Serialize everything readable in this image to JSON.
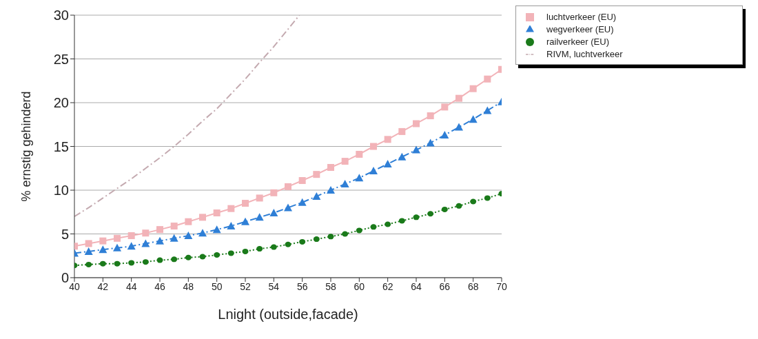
{
  "chart_data": {
    "type": "line",
    "xlabel": "Lnight (outside,facade)",
    "ylabel": "% ernstig gehinderd",
    "xlim": [
      40,
      70
    ],
    "xticks": [
      40,
      42,
      44,
      46,
      48,
      50,
      52,
      54,
      56,
      58,
      60,
      62,
      64,
      66,
      68,
      70
    ],
    "ylim": [
      0,
      30
    ],
    "yticks": [
      0,
      5,
      10,
      15,
      20,
      25,
      30
    ],
    "grid": "y",
    "legend": "top right",
    "x": [
      40,
      41,
      42,
      43,
      44,
      45,
      46,
      47,
      48,
      49,
      50,
      51,
      52,
      53,
      54,
      55,
      56,
      57,
      58,
      59,
      60,
      61,
      62,
      63,
      64,
      65,
      66,
      67,
      68,
      69,
      70
    ],
    "series": [
      {
        "name": "luchtverkeer (EU)",
        "color": "#f2b3b8",
        "marker": "square",
        "line_style": "solid",
        "values": [
          3.6,
          3.9,
          4.2,
          4.5,
          4.8,
          5.1,
          5.5,
          5.9,
          6.4,
          6.9,
          7.4,
          7.9,
          8.5,
          9.1,
          9.7,
          10.4,
          11.1,
          11.8,
          12.6,
          13.3,
          14.1,
          15.0,
          15.8,
          16.7,
          17.6,
          18.5,
          19.5,
          20.5,
          21.6,
          22.7,
          23.8
        ]
      },
      {
        "name": "wegverkeer (EU)",
        "color": "#2f7fd6",
        "marker": "triangle",
        "line_style": "dashed",
        "values": [
          2.8,
          3.0,
          3.2,
          3.4,
          3.6,
          3.9,
          4.2,
          4.5,
          4.8,
          5.1,
          5.5,
          5.9,
          6.4,
          6.9,
          7.4,
          8.0,
          8.6,
          9.3,
          10.0,
          10.7,
          11.4,
          12.2,
          13.0,
          13.8,
          14.6,
          15.4,
          16.3,
          17.2,
          18.1,
          19.1,
          20.1
        ]
      },
      {
        "name": "railverkeer (EU)",
        "color": "#1a7a1a",
        "marker": "circle",
        "line_style": "dotted",
        "values": [
          1.4,
          1.5,
          1.6,
          1.6,
          1.7,
          1.8,
          2.0,
          2.1,
          2.3,
          2.4,
          2.6,
          2.8,
          3.0,
          3.3,
          3.5,
          3.8,
          4.1,
          4.4,
          4.7,
          5.0,
          5.4,
          5.8,
          6.1,
          6.5,
          6.9,
          7.3,
          7.8,
          8.2,
          8.7,
          9.1,
          9.6
        ]
      },
      {
        "name": "RIVM, luchtverkeer",
        "color": "#c4aab0",
        "marker": "none",
        "line_style": "dashed",
        "x": [
          40,
          41,
          42,
          43,
          44,
          45,
          46,
          47,
          48,
          49,
          50,
          51,
          52,
          53,
          54,
          55,
          55.8
        ],
        "values": [
          7.0,
          8.0,
          9.1,
          10.2,
          11.3,
          12.5,
          13.7,
          15.0,
          16.4,
          17.9,
          19.3,
          21.0,
          22.7,
          24.6,
          26.4,
          28.4,
          30.0
        ]
      }
    ]
  }
}
